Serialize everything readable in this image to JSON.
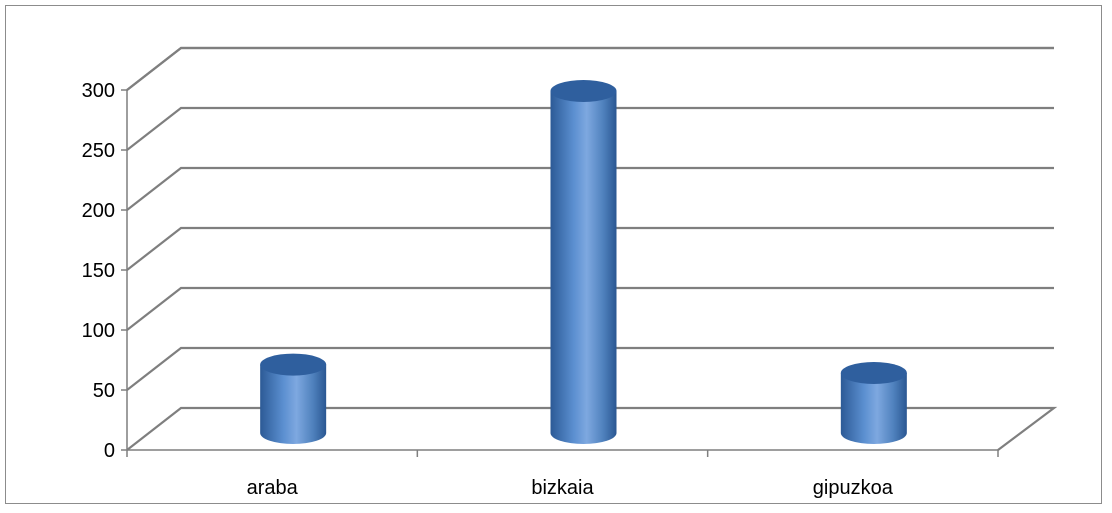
{
  "chart_data": {
    "type": "bar",
    "style": "3d-cylinder",
    "title": "",
    "xlabel": "",
    "ylabel": "",
    "categories": [
      "araba",
      "bizkaia",
      "gipuzkoa"
    ],
    "values": [
      57,
      285,
      50
    ],
    "ylim": [
      0,
      300
    ],
    "yticks": [
      0,
      50,
      100,
      150,
      200,
      250,
      300
    ],
    "ytick_labels": [
      "0",
      "50",
      "100",
      "150",
      "200",
      "250",
      "300"
    ],
    "grid": true,
    "legend": "none",
    "colors": {
      "bar": "#4f81bd",
      "bar_dark": "#2c5a96",
      "bar_light": "#8fb4e3",
      "bar_top": "#2f5f9e",
      "grid": "#7f7f7f"
    }
  }
}
